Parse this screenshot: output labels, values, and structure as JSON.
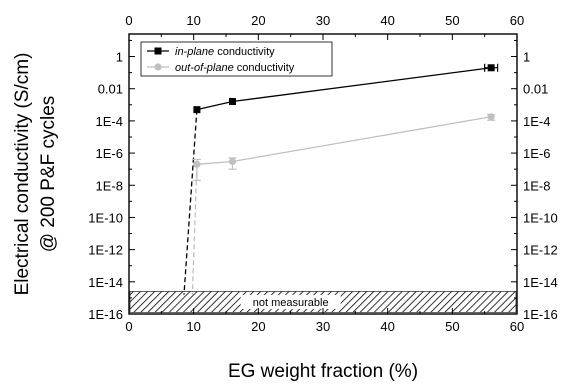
{
  "chart_data": {
    "type": "scatter",
    "xlabel": "EG weight fraction (%)",
    "ylabel_line1": "Electrical conductivity (S/cm)",
    "ylabel_line2": "@ 200 P&F cycles",
    "xlim": [
      0,
      60
    ],
    "x_ticks": [
      0,
      10,
      20,
      30,
      40,
      50,
      60
    ],
    "x_tick_labels": [
      "0",
      "10",
      "20",
      "30",
      "40",
      "50",
      "60"
    ],
    "y_scale": "log",
    "ylim_log10": [
      -16,
      1.4
    ],
    "y_ticks_log10": [
      0,
      -2,
      -4,
      -6,
      -8,
      -10,
      -12,
      -14,
      -16
    ],
    "y_tick_labels": [
      "1",
      "0.01",
      "1E-4",
      "1E-6",
      "1E-8",
      "1E-10",
      "1E-12",
      "1E-14",
      "1E-16"
    ],
    "grid": false,
    "legend_position": "top-left",
    "series": [
      {
        "name_prefix": "in-plane",
        "name_suffix": " conductivity",
        "color": "#000000",
        "marker": "square",
        "x": [
          10.5,
          16,
          56
        ],
        "y": [
          0.0005,
          0.0016,
          0.2
        ],
        "xerr": [
          0,
          0,
          1
        ],
        "yerr_low": [
          0,
          0,
          0
        ],
        "yerr_high": [
          0,
          0,
          0
        ]
      },
      {
        "name_prefix": "out-of-plane",
        "name_suffix": " conductivity",
        "color": "#c0c0c0",
        "marker": "circle",
        "x": [
          10.5,
          16,
          56
        ],
        "y": [
          2e-07,
          3e-07,
          0.00018
        ],
        "xerr": [
          0,
          0,
          0
        ],
        "yerr_low": [
          1.8e-07,
          2e-07,
          7e-05
        ],
        "yerr_high": [
          2e-07,
          2e-07,
          7e-05
        ]
      }
    ],
    "dashed_drop": [
      {
        "color": "#000000",
        "from_x": 10.5,
        "to_x": 8.5,
        "to_y_log10": -14.8
      },
      {
        "color": "#c0c0c0",
        "from_x": 10.5,
        "to_x": 9.8,
        "to_y_log10": -14.8
      }
    ],
    "hatched_band_log10": [
      -15.9,
      -14.6
    ],
    "annotation": "not measurable"
  }
}
